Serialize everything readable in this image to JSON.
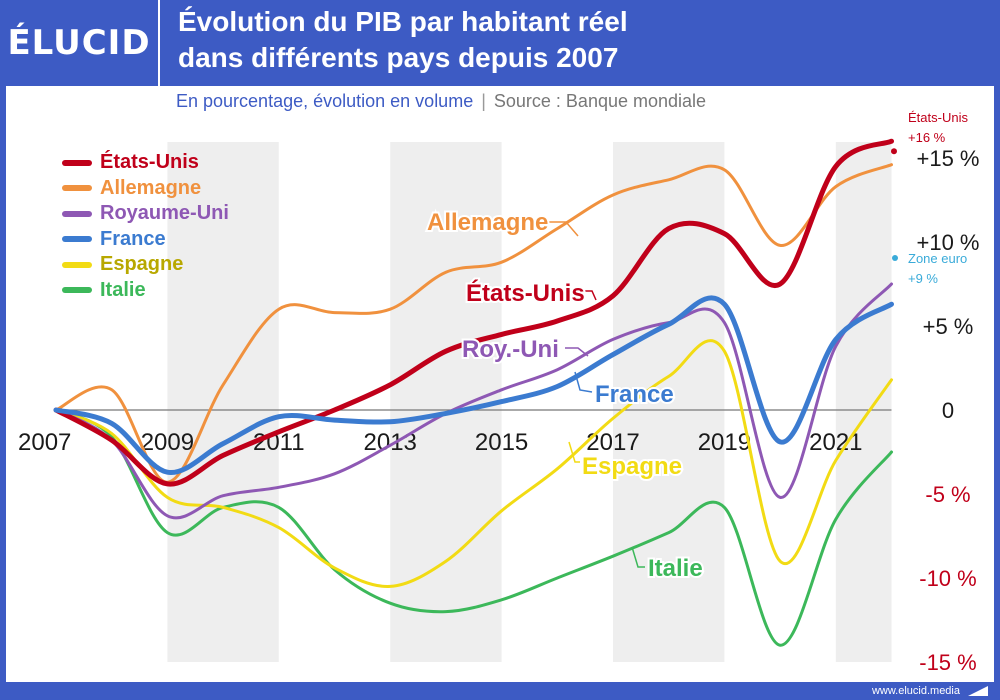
{
  "header": {
    "logo": "ÉLUCID",
    "title_line1": "Évolution du PIB par habitant réel",
    "title_line2": "dans différents pays depuis 2007",
    "subtitle": "En pourcentage, évolution en volume",
    "source": "Source : Banque mondiale"
  },
  "footer": {
    "url": "www.elucid.media"
  },
  "colors": {
    "background": "#3d5bc4",
    "usa": "#c0001a",
    "germany": "#f0913e",
    "uk": "#8e58b4",
    "france": "#3b7bd0",
    "spain": "#f2db14",
    "italy": "#3cb85a",
    "eurozone": "#3aabd9",
    "recession_band": "#eeeeee",
    "negative_tick": "#c0001a"
  },
  "chart_data": {
    "type": "line",
    "title": "Évolution du PIB par habitant réel dans différents pays depuis 2007",
    "subtitle": "En pourcentage, évolution en volume",
    "xlabel": "",
    "ylabel": "",
    "xlim": [
      2007,
      2022
    ],
    "ylim": [
      -15,
      16
    ],
    "x_ticks": [
      "2007",
      "2009",
      "2011",
      "2013",
      "2015",
      "2017",
      "2019",
      "2021"
    ],
    "y_ticks": [
      {
        "value": 15,
        "label": "+15 %"
      },
      {
        "value": 10,
        "label": "+10 %"
      },
      {
        "value": 5,
        "label": "+5 %"
      },
      {
        "value": 0,
        "label": "0"
      },
      {
        "value": -5,
        "label": "-5 %"
      },
      {
        "value": -10,
        "label": "-10 %"
      },
      {
        "value": -15,
        "label": "-15 %"
      }
    ],
    "grid": false,
    "legend_position": "top-left",
    "shaded_periods": [
      [
        2009,
        2011
      ],
      [
        2013,
        2015
      ],
      [
        2017,
        2019
      ],
      [
        2021,
        2022
      ]
    ],
    "series": [
      {
        "key": "usa",
        "name": "États-Unis",
        "inline_label": "États-Unis",
        "x": [
          2007,
          2008,
          2009,
          2010,
          2011,
          2012,
          2013,
          2014,
          2015,
          2016,
          2017,
          2018,
          2019,
          2020,
          2021,
          2022
        ],
        "y": [
          0,
          -1.8,
          -4.4,
          -2.7,
          -1.3,
          0,
          1.5,
          3.5,
          4.5,
          5.3,
          6.8,
          10.8,
          10.5,
          7.5,
          14.5,
          16
        ]
      },
      {
        "key": "germany",
        "name": "Allemagne",
        "inline_label": "Allemagne",
        "x": [
          2007,
          2008,
          2009,
          2010,
          2011,
          2012,
          2013,
          2014,
          2015,
          2016,
          2017,
          2018,
          2019,
          2020,
          2021,
          2022
        ],
        "y": [
          0,
          1.2,
          -4.3,
          1.5,
          6.0,
          5.8,
          6.0,
          8.2,
          8.8,
          10.8,
          12.8,
          13.7,
          14.3,
          9.8,
          13.3,
          14.6
        ]
      },
      {
        "key": "uk",
        "name": "Royaume-Uni",
        "inline_label": "Roy.-Uni",
        "x": [
          2007,
          2008,
          2009,
          2010,
          2011,
          2012,
          2013,
          2014,
          2015,
          2016,
          2017,
          2018,
          2019,
          2020,
          2021,
          2022
        ],
        "y": [
          0,
          -1.8,
          -6.3,
          -5.1,
          -4.6,
          -3.8,
          -2.1,
          -0.2,
          1.2,
          2.4,
          4.2,
          5.2,
          5.2,
          -5.2,
          3.8,
          7.5
        ]
      },
      {
        "key": "france",
        "name": "France",
        "inline_label": "France",
        "x": [
          2007,
          2008,
          2009,
          2010,
          2011,
          2012,
          2013,
          2014,
          2015,
          2016,
          2017,
          2018,
          2019,
          2020,
          2021,
          2022
        ],
        "y": [
          0,
          -0.8,
          -3.7,
          -2.0,
          -0.4,
          -0.6,
          -0.7,
          -0.2,
          0.5,
          1.4,
          3.3,
          5.1,
          6.3,
          -1.9,
          4.2,
          6.3
        ]
      },
      {
        "key": "spain",
        "name": "Espagne",
        "inline_label": "Espagne",
        "x": [
          2007,
          2008,
          2009,
          2010,
          2011,
          2012,
          2013,
          2014,
          2015,
          2016,
          2017,
          2018,
          2019,
          2020,
          2021,
          2022
        ],
        "y": [
          0,
          -1.4,
          -5.2,
          -5.8,
          -7.0,
          -9.4,
          -10.5,
          -9.0,
          -6.0,
          -3.5,
          -0.5,
          2.0,
          3.5,
          -9.0,
          -3.0,
          1.8
        ]
      },
      {
        "key": "italy",
        "name": "Italie",
        "inline_label": "Italie",
        "x": [
          2007,
          2008,
          2009,
          2010,
          2011,
          2012,
          2013,
          2014,
          2015,
          2016,
          2017,
          2018,
          2019,
          2020,
          2021,
          2022
        ],
        "y": [
          0,
          -1.6,
          -7.3,
          -5.8,
          -5.8,
          -9.5,
          -11.5,
          -12.0,
          -11.3,
          -10.0,
          -8.7,
          -7.3,
          -5.8,
          -14.0,
          -6.5,
          -2.5
        ]
      }
    ],
    "annotations": [
      {
        "key": "usa_end",
        "text_line1": "États-Unis",
        "text_line2": "+16 %",
        "x": 2022,
        "y": 16
      },
      {
        "key": "eurozone",
        "text_line1": "Zone euro",
        "text_line2": "+9 %",
        "x": 2022,
        "y": 9
      }
    ]
  }
}
